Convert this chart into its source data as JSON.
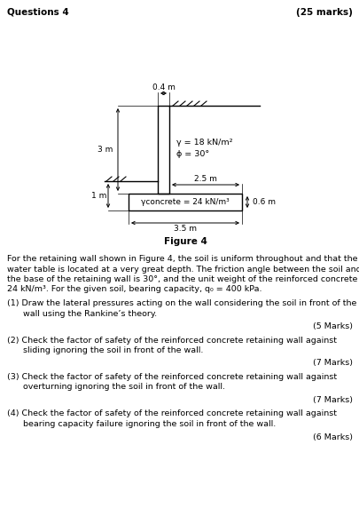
{
  "title_left": "Questions 4",
  "title_right": "(25 marks)",
  "figure_label": "Figure 4",
  "dim_stem_width": "0.4 m",
  "dim_height_left": "3 m",
  "dim_base_right": "2.5 m",
  "dim_base_left": "1 m",
  "dim_base_total": "3.5 m",
  "dim_base_height": "0.6 m",
  "gamma_soil": "γ = 18 kN/m²",
  "phi_soil": "ϕ = 30°",
  "gamma_concrete_label": "γconcrete = 24 kN/m³",
  "para_lines": [
    "For the retaining wall shown in Figure 4, the soil is uniform throughout and that the",
    "water table is located at a very great depth. The friction angle between the soil and",
    "the base of the retaining wall is 30°, and the unit weight of the reinforced concrete is",
    "24 kN/m³. For the given soil, bearing capacity, q₀ = 400 kPa."
  ],
  "q1_lines": [
    "(1) Draw the lateral pressures acting on the wall considering the soil in front of the",
    "      wall using the Rankine’s theory."
  ],
  "q1_marks": "(5 Marks)",
  "q2_lines": [
    "(2) Check the factor of safety of the reinforced concrete retaining wall against",
    "      sliding ignoring the soil in front of the wall."
  ],
  "q2_marks": "(7 Marks)",
  "q3_lines": [
    "(3) Check the factor of safety of the reinforced concrete retaining wall against",
    "      overturning ignoring the soil in front of the wall."
  ],
  "q3_marks": "(7 Marks)",
  "q4_lines": [
    "(4) Check the factor of safety of the reinforced concrete retaining wall against",
    "      bearing capacity failure ignoring the soil in front of the wall."
  ],
  "q4_marks": "(6 Marks)"
}
